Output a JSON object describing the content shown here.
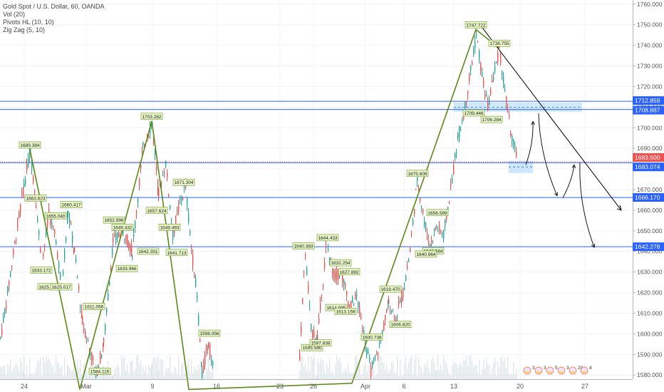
{
  "legend": {
    "title": "Gold Spot / U.S. Dollar, 60, OANDA",
    "indicators": [
      "Vol (20)",
      "Pivots HL (10, 10)",
      "Zig Zag (5, 10)"
    ]
  },
  "colors": {
    "candle_up": "#26a69a",
    "candle_down": "#ef5350",
    "zigzag": "#5b8a17",
    "hline": "#2962ff",
    "trendline": "#000000",
    "volume": "#cfd8dc",
    "label_bg": "#e8f5c8",
    "label_border": "#6a9a1f",
    "current_price": "#ef5350"
  },
  "chart_data": {
    "type": "candlestick",
    "title": "Gold Spot / U.S. Dollar, 60, OANDA",
    "x_ticks": [
      "24",
      "Mar",
      "9",
      "16",
      "23",
      "26",
      "Apr",
      "6",
      "13",
      "20",
      "27"
    ],
    "y_ticks": [
      "1580.000",
      "1590.000",
      "1600.000",
      "1610.000",
      "1620.000",
      "1630.000",
      "1640.000",
      "1650.000",
      "1660.000",
      "1670.000",
      "1680.000",
      "1690.000",
      "1700.000",
      "1710.000",
      "1720.000",
      "1730.000",
      "1740.000",
      "1750.000",
      "1760.000"
    ],
    "ylim": [
      1578,
      1762
    ],
    "grid": true,
    "price_path": [
      {
        "x": 0,
        "y": 1598
      },
      {
        "x": 10,
        "y": 1620
      },
      {
        "x": 22,
        "y": 1648
      },
      {
        "x": 33,
        "y": 1672
      },
      {
        "x": 42,
        "y": 1689
      },
      {
        "x": 50,
        "y": 1664
      },
      {
        "x": 58,
        "y": 1633
      },
      {
        "x": 68,
        "y": 1658
      },
      {
        "x": 78,
        "y": 1645
      },
      {
        "x": 86,
        "y": 1622
      },
      {
        "x": 95,
        "y": 1660
      },
      {
        "x": 104,
        "y": 1640
      },
      {
        "x": 115,
        "y": 1606
      },
      {
        "x": 126,
        "y": 1592
      },
      {
        "x": 134,
        "y": 1580
      },
      {
        "x": 145,
        "y": 1595
      },
      {
        "x": 158,
        "y": 1645
      },
      {
        "x": 172,
        "y": 1650
      },
      {
        "x": 185,
        "y": 1640
      },
      {
        "x": 200,
        "y": 1690
      },
      {
        "x": 213,
        "y": 1703
      },
      {
        "x": 222,
        "y": 1668
      },
      {
        "x": 232,
        "y": 1683
      },
      {
        "x": 242,
        "y": 1648
      },
      {
        "x": 252,
        "y": 1664
      },
      {
        "x": 260,
        "y": 1671
      },
      {
        "x": 268,
        "y": 1642
      },
      {
        "x": 276,
        "y": 1618
      },
      {
        "x": 283,
        "y": 1580
      },
      {
        "x": 292,
        "y": 1596
      },
      {
        "x": 300,
        "y": 1580
      },
      {
        "x": 420,
        "y": 1590
      },
      {
        "x": 428,
        "y": 1640
      },
      {
        "x": 436,
        "y": 1602
      },
      {
        "x": 445,
        "y": 1598
      },
      {
        "x": 458,
        "y": 1644
      },
      {
        "x": 468,
        "y": 1628
      },
      {
        "x": 478,
        "y": 1630
      },
      {
        "x": 490,
        "y": 1613
      },
      {
        "x": 500,
        "y": 1618
      },
      {
        "x": 510,
        "y": 1600
      },
      {
        "x": 520,
        "y": 1582
      },
      {
        "x": 532,
        "y": 1594
      },
      {
        "x": 545,
        "y": 1615
      },
      {
        "x": 555,
        "y": 1608
      },
      {
        "x": 565,
        "y": 1620
      },
      {
        "x": 575,
        "y": 1640
      },
      {
        "x": 585,
        "y": 1675
      },
      {
        "x": 595,
        "y": 1655
      },
      {
        "x": 603,
        "y": 1643
      },
      {
        "x": 612,
        "y": 1652
      },
      {
        "x": 622,
        "y": 1648
      },
      {
        "x": 632,
        "y": 1670
      },
      {
        "x": 642,
        "y": 1695
      },
      {
        "x": 652,
        "y": 1710
      },
      {
        "x": 660,
        "y": 1728
      },
      {
        "x": 668,
        "y": 1745
      },
      {
        "x": 676,
        "y": 1725
      },
      {
        "x": 684,
        "y": 1710
      },
      {
        "x": 692,
        "y": 1725
      },
      {
        "x": 700,
        "y": 1738
      },
      {
        "x": 708,
        "y": 1718
      },
      {
        "x": 716,
        "y": 1698
      },
      {
        "x": 726,
        "y": 1683
      }
    ],
    "zigzag": [
      {
        "x": 42,
        "y": 1689.384
      },
      {
        "x": 112,
        "y": 1573
      },
      {
        "x": 213,
        "y": 1703.282
      },
      {
        "x": 265,
        "y": 1573
      },
      {
        "x": 494,
        "y": 1576
      },
      {
        "x": 668,
        "y": 1747.722
      },
      {
        "x": 700,
        "y": 1738.755
      }
    ],
    "pivot_labels": [
      {
        "x": 42,
        "y": 1689.384,
        "label": "1689.384",
        "pos": "above"
      },
      {
        "x": 50,
        "y": 1663.623,
        "label": "1663.623",
        "pos": "above"
      },
      {
        "x": 78,
        "y": 1655.04,
        "label": "1655.040",
        "pos": "above"
      },
      {
        "x": 100,
        "y": 1660.417,
        "label": "1660.417",
        "pos": "above"
      },
      {
        "x": 58,
        "y": 1633.172,
        "label": "1633.172",
        "pos": "below"
      },
      {
        "x": 68,
        "y": 1625.12,
        "label": "1625.120",
        "pos": "below"
      },
      {
        "x": 86,
        "y": 1625.017,
        "label": "1625.017",
        "pos": "below"
      },
      {
        "x": 132,
        "y": 1611.056,
        "label": "1611.056",
        "pos": "above"
      },
      {
        "x": 140,
        "y": 1584.115,
        "label": "1584.115",
        "pos": "below"
      },
      {
        "x": 160,
        "y": 1652.996,
        "label": "1652.996",
        "pos": "above"
      },
      {
        "x": 172,
        "y": 1649.432,
        "label": "1649.432",
        "pos": "above"
      },
      {
        "x": 178,
        "y": 1633.966,
        "label": "1633.966",
        "pos": "below"
      },
      {
        "x": 213,
        "y": 1703.282,
        "label": "1703.282",
        "pos": "above"
      },
      {
        "x": 220,
        "y": 1657.624,
        "label": "1657.624",
        "pos": "above"
      },
      {
        "x": 208,
        "y": 1642.351,
        "label": "1642.351",
        "pos": "below"
      },
      {
        "x": 238,
        "y": 1649.493,
        "label": "1649.493",
        "pos": "above"
      },
      {
        "x": 248,
        "y": 1641.713,
        "label": "1641.713",
        "pos": "below"
      },
      {
        "x": 258,
        "y": 1671.304,
        "label": "1671.304",
        "pos": "above"
      },
      {
        "x": 294,
        "y": 1598.056,
        "label": "1598.056",
        "pos": "above"
      },
      {
        "x": 426,
        "y": 1640.383,
        "label": "1640.383",
        "pos": "above"
      },
      {
        "x": 460,
        "y": 1644.433,
        "label": "1644.433",
        "pos": "above"
      },
      {
        "x": 478,
        "y": 1632.254,
        "label": "1632.254",
        "pos": "above"
      },
      {
        "x": 490,
        "y": 1627.882,
        "label": "1627.882",
        "pos": "above"
      },
      {
        "x": 472,
        "y": 1614.985,
        "label": "1614.985",
        "pos": "below"
      },
      {
        "x": 485,
        "y": 1613.159,
        "label": "1613.159",
        "pos": "below"
      },
      {
        "x": 522,
        "y": 1600.738,
        "label": "1600.738",
        "pos": "below"
      },
      {
        "x": 438,
        "y": 1595.58,
        "label": "1595.580",
        "pos": "below"
      },
      {
        "x": 450,
        "y": 1597.838,
        "label": "1597.838",
        "pos": "below"
      },
      {
        "x": 548,
        "y": 1619.47,
        "label": "1619.470",
        "pos": "above"
      },
      {
        "x": 562,
        "y": 1606.82,
        "label": "1606.820",
        "pos": "below"
      },
      {
        "x": 586,
        "y": 1675.609,
        "label": "1675.609",
        "pos": "above"
      },
      {
        "x": 614,
        "y": 1656.589,
        "label": "1656.589",
        "pos": "above"
      },
      {
        "x": 608,
        "y": 1642.584,
        "label": "1642.584",
        "pos": "below"
      },
      {
        "x": 598,
        "y": 1640.964,
        "label": "1640.964",
        "pos": "below"
      },
      {
        "x": 668,
        "y": 1747.722,
        "label": "1747.722",
        "pos": "above"
      },
      {
        "x": 701,
        "y": 1738.755,
        "label": "1738.755",
        "pos": "above"
      },
      {
        "x": 665,
        "y": 1709.446,
        "label": "1709.446",
        "pos": "below"
      },
      {
        "x": 690,
        "y": 1706.284,
        "label": "1706.284",
        "pos": "below"
      }
    ],
    "horizontal_levels": [
      {
        "value": 1712.859,
        "label": "1712.859",
        "color": "#2962ff"
      },
      {
        "value": 1708.887,
        "label": "1708.887",
        "color": "#2962ff"
      },
      {
        "value": 1683.5,
        "label": "1683.500",
        "color": "#ef5350"
      },
      {
        "value": 1683.074,
        "label": "1683.074",
        "color": "#2962ff"
      },
      {
        "value": 1666.17,
        "label": "1666.170",
        "color": "#2962ff"
      },
      {
        "value": 1642.278,
        "label": "1642.278",
        "color": "#2962ff"
      }
    ],
    "trendline": [
      {
        "x": 676,
        "y": 1749
      },
      {
        "x": 872,
        "y": 1660
      }
    ],
    "projection_arrows": [
      [
        {
          "x": 738,
          "y": 1682
        },
        {
          "x": 748,
          "y": 1703
        }
      ],
      [
        {
          "x": 756,
          "y": 1707
        },
        {
          "x": 782,
          "y": 1667
        }
      ],
      [
        {
          "x": 790,
          "y": 1666
        },
        {
          "x": 806,
          "y": 1682
        }
      ],
      [
        {
          "x": 814,
          "y": 1683
        },
        {
          "x": 834,
          "y": 1642
        }
      ]
    ],
    "zones": [
      {
        "x0": 637,
        "x1": 817,
        "y0": 1712.2,
        "y1": 1707.8
      },
      {
        "x0": 714,
        "x1": 748,
        "y0": 1684.0,
        "y1": 1678.0
      }
    ],
    "event_count_labels": [
      "3",
      "3",
      "5",
      "3",
      "20",
      "4"
    ]
  }
}
